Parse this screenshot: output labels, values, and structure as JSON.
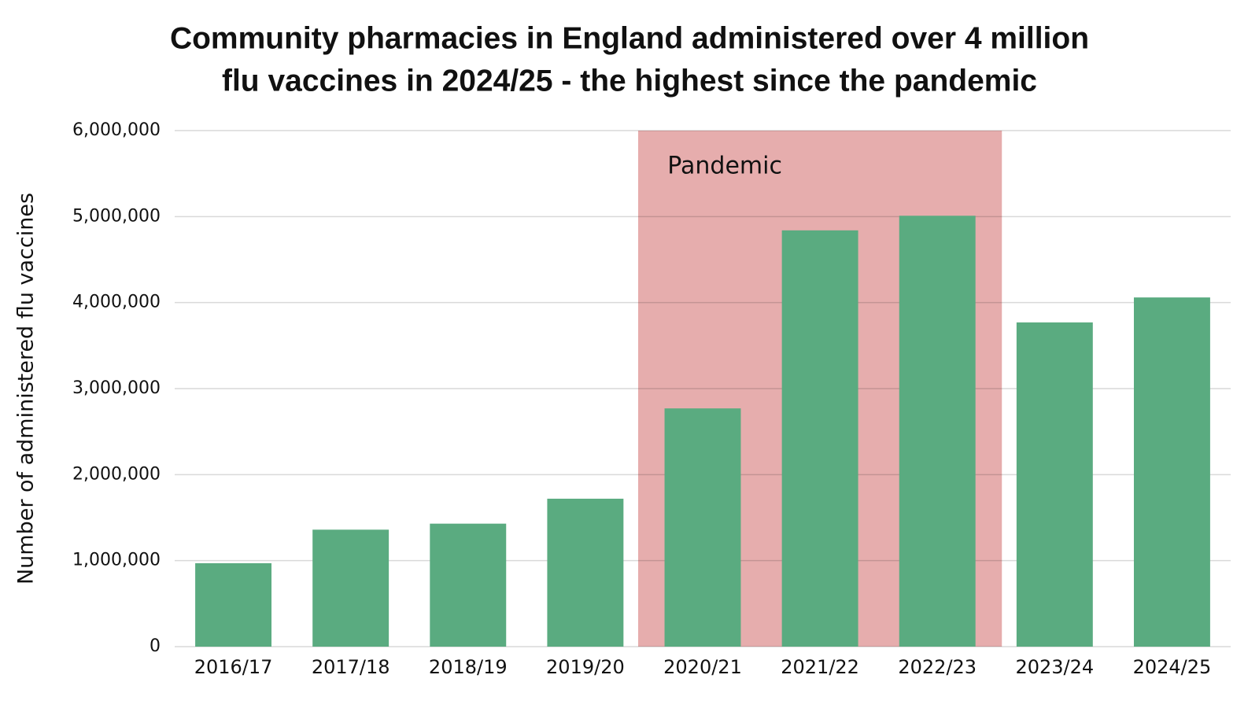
{
  "chart_data": {
    "type": "bar",
    "title": [
      "Community pharmacies in England administered over 4 million",
      "flu vaccines in 2024/25 - the highest since the pandemic"
    ],
    "y_label": "Number of administered flu vaccines",
    "categories": [
      "2016/17",
      "2017/18",
      "2018/19",
      "2019/20",
      "2020/21",
      "2021/22",
      "2022/23",
      "2023/24",
      "2024/25"
    ],
    "values": [
      970000,
      1360000,
      1430000,
      1720000,
      2770000,
      4840000,
      5010000,
      3770000,
      4060000
    ],
    "color": "#5aab80",
    "ylim": [
      0,
      6000000
    ],
    "yticks": [
      0,
      {
        "value": 1000000,
        "label": "1,000,000"
      },
      {
        "value": 2000000,
        "label": "2,000,000"
      },
      {
        "value": 3000000,
        "label": "3,000,000"
      },
      {
        "value": 4000000,
        "label": "4,000,000"
      },
      {
        "value": 5000000,
        "label": "5,000,000"
      },
      {
        "value": 6000000,
        "label": "6,000,000"
      }
    ],
    "grid": true,
    "highlight": {
      "label": "Pandemic",
      "from": "2020/21",
      "to": "2022/23",
      "color": "#e6adad"
    }
  }
}
